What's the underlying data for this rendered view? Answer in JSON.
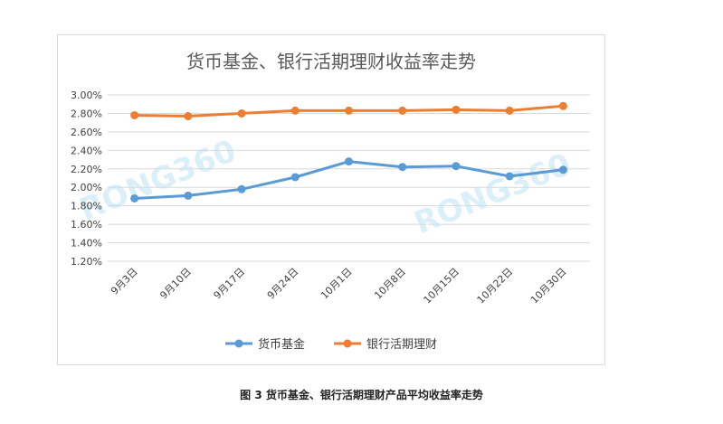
{
  "chart_data": {
    "type": "line",
    "title": "货币基金、银行活期理财收益率走势",
    "categories": [
      "9月3日",
      "9月10日",
      "9月17日",
      "9月24日",
      "10月1日",
      "10月8日",
      "10月15日",
      "10月22日",
      "10月30日"
    ],
    "series": [
      {
        "name": "货币基金",
        "color": "#5b9bd5",
        "values": [
          1.88,
          1.91,
          1.98,
          2.11,
          2.28,
          2.22,
          2.23,
          2.12,
          2.19
        ]
      },
      {
        "name": "银行活期理财",
        "color": "#ed7d31",
        "values": [
          2.78,
          2.77,
          2.8,
          2.83,
          2.83,
          2.83,
          2.84,
          2.83,
          2.88
        ]
      }
    ],
    "ylim": [
      1.2,
      3.0
    ],
    "yticks": [
      "1.20%",
      "1.40%",
      "1.60%",
      "1.80%",
      "2.00%",
      "2.20%",
      "2.40%",
      "2.60%",
      "2.80%",
      "3.00%"
    ],
    "grid": true,
    "legend_position": "bottom",
    "xlabel": "",
    "ylabel": ""
  },
  "watermarks": [
    "RONG360",
    "RONG360"
  ],
  "caption": "图 3  货币基金、银行活期理财产品平均收益率走势"
}
